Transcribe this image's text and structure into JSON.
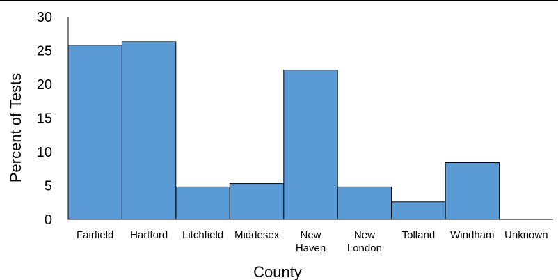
{
  "chart_data": {
    "type": "bar",
    "xlabel": "County",
    "ylabel": "Percent  of Tests",
    "ylim": [
      0,
      30
    ],
    "yticks": [
      0,
      5,
      10,
      15,
      20,
      25,
      30
    ],
    "categories": [
      [
        "Fairfield"
      ],
      [
        "Hartford"
      ],
      [
        "Litchfield"
      ],
      [
        "Middesex"
      ],
      [
        "New",
        "Haven"
      ],
      [
        "New",
        "London"
      ],
      [
        "Tolland"
      ],
      [
        "Windham"
      ],
      [
        "Unknown"
      ]
    ],
    "values": [
      25.8,
      26.3,
      4.8,
      5.3,
      22.1,
      4.8,
      2.6,
      8.4,
      0
    ],
    "bar_color": "#5B9BD5",
    "grid": false
  }
}
